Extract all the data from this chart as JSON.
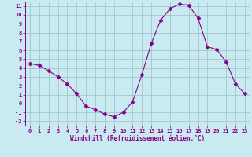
{
  "x": [
    0,
    1,
    2,
    3,
    4,
    5,
    6,
    7,
    8,
    9,
    10,
    11,
    12,
    13,
    14,
    15,
    16,
    17,
    18,
    19,
    20,
    21,
    22,
    23
  ],
  "y": [
    4.5,
    4.3,
    3.7,
    3.0,
    2.2,
    1.1,
    -0.3,
    -0.7,
    -1.2,
    -1.5,
    -1.0,
    0.2,
    3.3,
    6.8,
    9.4,
    10.7,
    11.2,
    11.1,
    9.6,
    6.4,
    6.1,
    4.7,
    2.2,
    1.1
  ],
  "line_color": "#880088",
  "marker": "D",
  "marker_size": 2.5,
  "bg_color": "#c8eaf0",
  "grid_color": "#9bbfc8",
  "xlabel": "Windchill (Refroidissement éolien,°C)",
  "xlim": [
    -0.5,
    23.5
  ],
  "ylim": [
    -2.5,
    11.5
  ],
  "xticks": [
    0,
    1,
    2,
    3,
    4,
    5,
    6,
    7,
    8,
    9,
    10,
    11,
    12,
    13,
    14,
    15,
    16,
    17,
    18,
    19,
    20,
    21,
    22,
    23
  ],
  "yticks": [
    -2,
    -1,
    0,
    1,
    2,
    3,
    4,
    5,
    6,
    7,
    8,
    9,
    10,
    11
  ],
  "tick_color": "#880088",
  "label_color": "#880088",
  "tick_fontsize": 5.0,
  "xlabel_fontsize": 5.5
}
